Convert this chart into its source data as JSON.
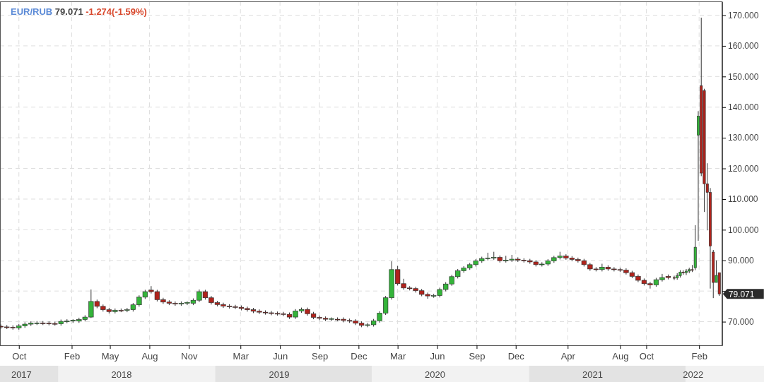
{
  "chart_data": {
    "type": "candlestick",
    "title": "EUR/RUB",
    "annotations": [
      "79.071",
      "-1.274(-1.59%)",
      {
        "text": "79.071",
        "x": "2022-03-20",
        "y": 79.071
      }
    ],
    "x": [
      "2017-08-20",
      "2017-09-03",
      "2017-09-17",
      "2017-10-01",
      "2017-10-15",
      "2017-10-29",
      "2017-11-12",
      "2017-11-26",
      "2017-12-10",
      "2017-12-24",
      "2018-01-07",
      "2018-01-21",
      "2018-02-04",
      "2018-02-18",
      "2018-03-04",
      "2018-03-18",
      "2018-04-01",
      "2018-04-15",
      "2018-04-29",
      "2018-05-13",
      "2018-05-27",
      "2018-06-10",
      "2018-06-24",
      "2018-07-08",
      "2018-07-22",
      "2018-08-05",
      "2018-08-19",
      "2018-09-02",
      "2018-09-16",
      "2018-09-30",
      "2018-10-14",
      "2018-10-28",
      "2018-11-11",
      "2018-11-25",
      "2018-12-09",
      "2018-12-23",
      "2019-01-06",
      "2019-01-20",
      "2019-02-03",
      "2019-02-17",
      "2019-03-03",
      "2019-03-17",
      "2019-03-31",
      "2019-04-14",
      "2019-04-28",
      "2019-05-12",
      "2019-05-26",
      "2019-06-09",
      "2019-06-23",
      "2019-07-07",
      "2019-07-21",
      "2019-08-04",
      "2019-08-18",
      "2019-09-01",
      "2019-09-15",
      "2019-09-29",
      "2019-10-13",
      "2019-10-27",
      "2019-11-10",
      "2019-11-24",
      "2019-12-08",
      "2019-12-22",
      "2020-01-05",
      "2020-01-19",
      "2020-02-02",
      "2020-02-16",
      "2020-03-01",
      "2020-03-15",
      "2020-03-29",
      "2020-04-12",
      "2020-04-26",
      "2020-05-10",
      "2020-05-24",
      "2020-06-07",
      "2020-06-21",
      "2020-07-05",
      "2020-07-19",
      "2020-08-02",
      "2020-08-16",
      "2020-08-30",
      "2020-09-13",
      "2020-09-27",
      "2020-10-11",
      "2020-10-25",
      "2020-11-08",
      "2020-11-22",
      "2020-12-06",
      "2020-12-20",
      "2021-01-03",
      "2021-01-17",
      "2021-01-31",
      "2021-02-14",
      "2021-02-28",
      "2021-03-14",
      "2021-03-28",
      "2021-04-11",
      "2021-04-25",
      "2021-05-09",
      "2021-05-23",
      "2021-06-06",
      "2021-06-20",
      "2021-07-04",
      "2021-07-18",
      "2021-08-01",
      "2021-08-15",
      "2021-08-29",
      "2021-09-12",
      "2021-09-26",
      "2021-10-10",
      "2021-10-24",
      "2021-11-07",
      "2021-11-21",
      "2021-12-05",
      "2021-12-12",
      "2021-12-19",
      "2021-12-26",
      "2022-01-02",
      "2022-01-09",
      "2022-01-16",
      "2022-01-23",
      "2022-01-30",
      "2022-02-06",
      "2022-02-13",
      "2022-02-20",
      "2022-02-27",
      "2022-03-06",
      "2022-03-13",
      "2022-03-20"
    ],
    "ohlc": [
      [
        68.5,
        69.1,
        67.7,
        68.3
      ],
      [
        68.3,
        68.9,
        67.6,
        68.2
      ],
      [
        68.2,
        68.8,
        67.4,
        68.0
      ],
      [
        68.0,
        69.2,
        67.4,
        68.6
      ],
      [
        68.6,
        69.8,
        68.0,
        69.2
      ],
      [
        69.2,
        70.1,
        68.6,
        69.5
      ],
      [
        69.5,
        70.2,
        68.9,
        69.6
      ],
      [
        69.6,
        70.2,
        68.9,
        69.5
      ],
      [
        69.5,
        70.1,
        68.8,
        69.4
      ],
      [
        69.4,
        70.0,
        68.7,
        69.3
      ],
      [
        69.3,
        70.7,
        68.7,
        70.1
      ],
      [
        70.1,
        70.8,
        69.5,
        70.2
      ],
      [
        70.2,
        70.8,
        69.6,
        70.5
      ],
      [
        70.2,
        71.3,
        69.6,
        70.7
      ],
      [
        70.7,
        72.1,
        70.1,
        71.5
      ],
      [
        71.5,
        80.5,
        71.2,
        76.6
      ],
      [
        76.6,
        77.2,
        74.4,
        75.0
      ],
      [
        75.0,
        75.6,
        73.3,
        73.9
      ],
      [
        73.9,
        74.5,
        72.7,
        73.3
      ],
      [
        73.3,
        74.3,
        72.7,
        73.7
      ],
      [
        73.7,
        74.3,
        73.1,
        73.5
      ],
      [
        73.7,
        74.5,
        73.1,
        73.9
      ],
      [
        73.9,
        76.1,
        73.3,
        75.5
      ],
      [
        75.5,
        78.6,
        74.9,
        78.0
      ],
      [
        78.0,
        80.4,
        77.4,
        79.8
      ],
      [
        80.3,
        81.6,
        79.2,
        79.8
      ],
      [
        79.8,
        80.4,
        76.6,
        77.2
      ],
      [
        77.2,
        77.8,
        75.8,
        76.4
      ],
      [
        76.4,
        77.0,
        75.4,
        76.0
      ],
      [
        76.0,
        76.6,
        75.2,
        75.8
      ],
      [
        75.8,
        76.6,
        75.2,
        76.0
      ],
      [
        76.0,
        76.6,
        75.4,
        76.3
      ],
      [
        76.0,
        77.6,
        75.4,
        77.0
      ],
      [
        77.0,
        80.5,
        76.4,
        79.8
      ],
      [
        79.8,
        80.4,
        77.2,
        77.8
      ],
      [
        77.8,
        78.4,
        75.6,
        76.2
      ],
      [
        76.2,
        76.8,
        75.0,
        75.6
      ],
      [
        75.6,
        76.2,
        74.5,
        75.1
      ],
      [
        75.1,
        75.7,
        74.3,
        74.9
      ],
      [
        74.9,
        75.5,
        74.1,
        74.7
      ],
      [
        74.7,
        75.3,
        73.7,
        74.3
      ],
      [
        74.3,
        74.9,
        73.3,
        73.9
      ],
      [
        73.9,
        74.5,
        72.8,
        73.4
      ],
      [
        73.4,
        74.0,
        72.5,
        73.1
      ],
      [
        73.1,
        73.7,
        72.3,
        72.9
      ],
      [
        72.9,
        73.5,
        72.1,
        72.7
      ],
      [
        72.7,
        73.3,
        72.0,
        72.6
      ],
      [
        72.6,
        73.2,
        71.8,
        72.4
      ],
      [
        72.4,
        73.0,
        70.9,
        71.5
      ],
      [
        71.5,
        74.1,
        70.9,
        73.5
      ],
      [
        73.5,
        74.6,
        72.9,
        74.0
      ],
      [
        74.0,
        74.6,
        72.0,
        72.6
      ],
      [
        72.6,
        73.2,
        70.8,
        71.4
      ],
      [
        71.4,
        72.0,
        70.5,
        71.1
      ],
      [
        71.1,
        71.7,
        70.2,
        70.8
      ],
      [
        70.8,
        71.4,
        70.2,
        71.0
      ],
      [
        70.8,
        71.4,
        70.2,
        70.6
      ],
      [
        70.8,
        71.4,
        69.8,
        70.4
      ],
      [
        70.4,
        71.0,
        69.6,
        70.2
      ],
      [
        70.2,
        70.8,
        68.9,
        69.5
      ],
      [
        69.5,
        70.1,
        68.2,
        68.8
      ],
      [
        68.8,
        69.6,
        68.2,
        69.0
      ],
      [
        69.0,
        70.9,
        68.4,
        70.3
      ],
      [
        70.3,
        73.4,
        69.7,
        72.8
      ],
      [
        72.8,
        78.4,
        72.2,
        77.8
      ],
      [
        77.8,
        89.7,
        77.2,
        87.0
      ],
      [
        87.0,
        88.2,
        81.8,
        82.4
      ],
      [
        82.4,
        84.0,
        80.4,
        81.0
      ],
      [
        81.0,
        81.6,
        80.2,
        80.8
      ],
      [
        80.8,
        81.4,
        79.5,
        80.1
      ],
      [
        80.1,
        80.7,
        78.3,
        78.9
      ],
      [
        78.9,
        79.5,
        77.5,
        78.4
      ],
      [
        78.4,
        79.1,
        77.8,
        78.5
      ],
      [
        78.5,
        81.1,
        77.9,
        80.5
      ],
      [
        80.5,
        82.9,
        79.9,
        82.3
      ],
      [
        82.3,
        85.3,
        81.7,
        84.7
      ],
      [
        84.7,
        87.2,
        84.1,
        86.6
      ],
      [
        86.6,
        88.1,
        86.0,
        87.5
      ],
      [
        87.5,
        89.2,
        86.9,
        88.6
      ],
      [
        88.6,
        90.4,
        88.0,
        89.8
      ],
      [
        89.8,
        91.2,
        89.2,
        90.6
      ],
      [
        90.6,
        92.5,
        90.0,
        90.8
      ],
      [
        90.8,
        92.8,
        90.2,
        91.0
      ],
      [
        91.0,
        91.6,
        89.3,
        89.9
      ],
      [
        89.9,
        91.5,
        89.3,
        90.1
      ],
      [
        90.1,
        91.8,
        89.5,
        90.4
      ],
      [
        90.4,
        91.0,
        89.5,
        90.1
      ],
      [
        90.1,
        90.7,
        89.3,
        89.9
      ],
      [
        89.9,
        90.5,
        88.9,
        89.5
      ],
      [
        89.5,
        90.1,
        88.0,
        88.6
      ],
      [
        88.6,
        89.4,
        88.0,
        88.8
      ],
      [
        88.8,
        90.4,
        88.2,
        89.8
      ],
      [
        89.8,
        91.5,
        89.2,
        90.9
      ],
      [
        90.9,
        92.8,
        90.3,
        91.4
      ],
      [
        91.4,
        92.0,
        90.2,
        90.8
      ],
      [
        90.8,
        91.4,
        89.7,
        90.3
      ],
      [
        90.3,
        90.9,
        89.3,
        89.9
      ],
      [
        89.9,
        90.5,
        88.0,
        88.6
      ],
      [
        88.6,
        89.2,
        86.6,
        87.2
      ],
      [
        87.2,
        87.8,
        86.4,
        87.0
      ],
      [
        87.0,
        88.9,
        86.4,
        87.8
      ],
      [
        87.8,
        88.4,
        86.6,
        87.2
      ],
      [
        87.2,
        87.8,
        86.4,
        87.0
      ],
      [
        87.0,
        87.6,
        86.2,
        86.8
      ],
      [
        86.8,
        87.4,
        85.4,
        86.0
      ],
      [
        86.0,
        86.6,
        84.2,
        84.8
      ],
      [
        84.8,
        85.4,
        82.9,
        83.5
      ],
      [
        83.5,
        84.1,
        81.8,
        82.4
      ],
      [
        82.4,
        83.0,
        80.8,
        82.0
      ],
      [
        82.0,
        84.3,
        81.4,
        83.7
      ],
      [
        83.7,
        85.6,
        83.1,
        84.4
      ],
      [
        84.8,
        85.4,
        83.8,
        84.4
      ],
      [
        84.4,
        85.0,
        83.6,
        84.3
      ],
      [
        84.3,
        85.8,
        83.7,
        85.0
      ],
      [
        85.0,
        86.8,
        84.4,
        86.2
      ],
      [
        86.2,
        86.8,
        85.3,
        86.0
      ],
      [
        86.0,
        87.2,
        85.2,
        86.5
      ],
      [
        86.5,
        87.6,
        85.8,
        87.0
      ],
      [
        87.0,
        88.5,
        86.2,
        86.8
      ],
      [
        87.6,
        101.5,
        86.8,
        94.3
      ],
      [
        130.9,
        138.7,
        96.4,
        137.1
      ],
      [
        147.0,
        169.2,
        117.5,
        118.5
      ],
      [
        145.4,
        146.0,
        105.8,
        115.0
      ],
      [
        115.0,
        121.7,
        99.8,
        112.2
      ],
      [
        112.2,
        113.6,
        80.8,
        94.7
      ],
      [
        92.7,
        93.4,
        77.7,
        82.8
      ],
      [
        82.8,
        90.0,
        82.8,
        85.1
      ],
      [
        86.0,
        86.0,
        78.4,
        79.071
      ]
    ],
    "xlim": [
      "2017-08-18",
      "2022-03-27"
    ],
    "xticks": [
      {
        "value": "2017-10-01",
        "label": "Oct"
      },
      {
        "value": "2018-02-01",
        "label": "Feb"
      },
      {
        "value": "2018-05-01",
        "label": "May"
      },
      {
        "value": "2018-08-01",
        "label": "Aug"
      },
      {
        "value": "2018-11-01",
        "label": "Nov"
      },
      {
        "value": "2019-03-01",
        "label": "Mar"
      },
      {
        "value": "2019-06-01",
        "label": "Jun"
      },
      {
        "value": "2019-09-01",
        "label": "Sep"
      },
      {
        "value": "2019-12-01",
        "label": "Dec"
      },
      {
        "value": "2020-03-01",
        "label": "Mar"
      },
      {
        "value": "2020-06-01",
        "label": "Jun"
      },
      {
        "value": "2020-09-01",
        "label": "Sep"
      },
      {
        "value": "2020-12-01",
        "label": "Dec"
      },
      {
        "value": "2021-04-01",
        "label": "Apr"
      },
      {
        "value": "2021-08-01",
        "label": "Aug"
      },
      {
        "value": "2021-10-01",
        "label": "Oct"
      },
      {
        "value": "2022-02-01",
        "label": "Feb"
      }
    ],
    "x2lim": [
      "2017-08-18",
      "2022-03-27"
    ],
    "x2ticks": [
      {
        "value": "2017-10-07",
        "label": "2017"
      },
      {
        "value": "2018-05-28",
        "label": "2018"
      },
      {
        "value": "2019-05-30",
        "label": "2019"
      },
      {
        "value": "2020-05-27",
        "label": "2020"
      },
      {
        "value": "2021-05-29",
        "label": "2021"
      },
      {
        "value": "2022-01-18",
        "label": "2022"
      }
    ],
    "ylim": [
      62.3,
      174.5
    ],
    "yticks": [
      {
        "value": 70,
        "label": "70.000"
      },
      {
        "value": 80,
        "label": null
      },
      {
        "value": 90,
        "label": "90.000"
      },
      {
        "value": 100,
        "label": "100.000"
      },
      {
        "value": 110,
        "label": "110.000"
      },
      {
        "value": 120,
        "label": "120.000"
      },
      {
        "value": 130,
        "label": "130.000"
      },
      {
        "value": 140,
        "label": "140.000"
      },
      {
        "value": 150,
        "label": "150.000"
      },
      {
        "value": 160,
        "label": "160.000"
      },
      {
        "value": 170,
        "label": "170.000"
      }
    ],
    "grid": true
  }
}
